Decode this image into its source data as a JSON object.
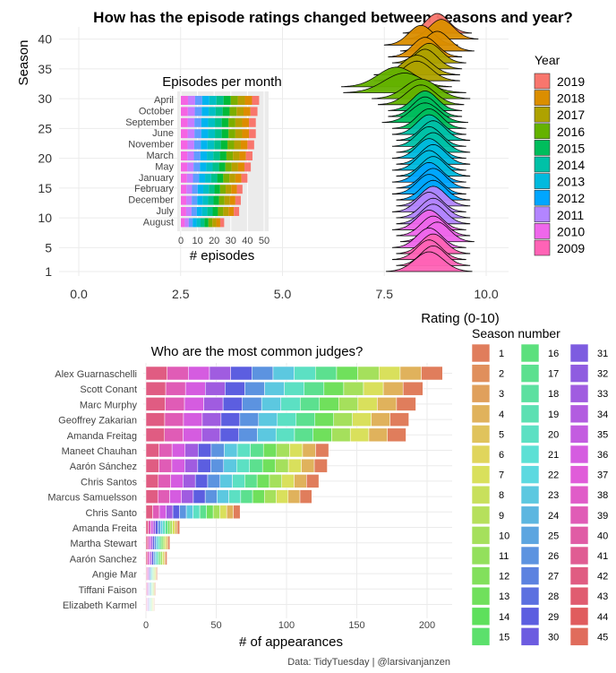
{
  "chart_data": [
    {
      "type": "ridgeline",
      "title": "How has the episode ratings changed between seasons and year?",
      "xlabel": "Rating (0-10)",
      "ylabel": "Season",
      "xlim": [
        0,
        10
      ],
      "xticks": [
        "0.0",
        "2.5",
        "5.0",
        "7.5",
        "10.0"
      ],
      "ytick_labels": [
        "1",
        "5",
        "10",
        "15",
        "20",
        "25",
        "30",
        "35",
        "40"
      ],
      "ytick_values": [
        1,
        5,
        10,
        15,
        20,
        25,
        30,
        35,
        40
      ],
      "legend_title": "Year",
      "legend_position": "right",
      "legend": [
        "2019",
        "2018",
        "2017",
        "2016",
        "2015",
        "2014",
        "2013",
        "2012",
        "2011",
        "2010",
        "2009"
      ],
      "seasons": [
        {
          "season": 1,
          "mean": 8.6,
          "sd": 0.35
        },
        {
          "season": 2,
          "mean": 8.7,
          "sd": 0.3
        },
        {
          "season": 3,
          "mean": 8.6,
          "sd": 0.3
        },
        {
          "season": 4,
          "mean": 8.7,
          "sd": 0.3
        },
        {
          "season": 5,
          "mean": 8.6,
          "sd": 0.3
        },
        {
          "season": 6,
          "mean": 8.8,
          "sd": 0.3
        },
        {
          "season": 7,
          "mean": 8.7,
          "sd": 0.3
        },
        {
          "season": 8,
          "mean": 8.6,
          "sd": 0.3
        },
        {
          "season": 9,
          "mean": 8.7,
          "sd": 0.3
        },
        {
          "season": 10,
          "mean": 8.7,
          "sd": 0.3
        },
        {
          "season": 11,
          "mean": 8.6,
          "sd": 0.3
        },
        {
          "season": 12,
          "mean": 8.7,
          "sd": 0.3
        },
        {
          "season": 13,
          "mean": 8.7,
          "sd": 0.3
        },
        {
          "season": 14,
          "mean": 8.6,
          "sd": 0.3
        },
        {
          "season": 15,
          "mean": 8.7,
          "sd": 0.3
        },
        {
          "season": 16,
          "mean": 8.6,
          "sd": 0.3
        },
        {
          "season": 17,
          "mean": 8.7,
          "sd": 0.3
        },
        {
          "season": 18,
          "mean": 8.6,
          "sd": 0.3
        },
        {
          "season": 19,
          "mean": 8.7,
          "sd": 0.3
        },
        {
          "season": 20,
          "mean": 8.6,
          "sd": 0.3
        },
        {
          "season": 21,
          "mean": 8.7,
          "sd": 0.3
        },
        {
          "season": 22,
          "mean": 8.6,
          "sd": 0.3
        },
        {
          "season": 23,
          "mean": 8.7,
          "sd": 0.3
        },
        {
          "season": 24,
          "mean": 8.6,
          "sd": 0.3
        },
        {
          "season": 25,
          "mean": 8.6,
          "sd": 0.3
        },
        {
          "season": 26,
          "mean": 8.5,
          "sd": 0.35
        },
        {
          "season": 27,
          "mean": 8.5,
          "sd": 0.3
        },
        {
          "season": 28,
          "mean": 8.5,
          "sd": 0.3
        },
        {
          "season": 29,
          "mean": 8.4,
          "sd": 0.35
        },
        {
          "season": 30,
          "mean": 8.4,
          "sd": 0.4
        },
        {
          "season": 31,
          "mean": 8.0,
          "sd": 0.5
        },
        {
          "season": 32,
          "mean": 7.8,
          "sd": 0.45
        },
        {
          "season": 33,
          "mean": 8.3,
          "sd": 0.35
        },
        {
          "season": 34,
          "mean": 8.3,
          "sd": 0.35
        },
        {
          "season": 35,
          "mean": 8.5,
          "sd": 0.3
        },
        {
          "season": 36,
          "mean": 8.6,
          "sd": 0.3
        },
        {
          "season": 37,
          "mean": 8.5,
          "sd": 0.3
        },
        {
          "season": 38,
          "mean": 8.8,
          "sd": 0.3
        },
        {
          "season": 39,
          "mean": 8.4,
          "sd": 0.3
        },
        {
          "season": 40,
          "mean": 8.9,
          "sd": 0.3
        },
        {
          "season": 41,
          "mean": 8.8,
          "sd": 0.28
        }
      ]
    },
    {
      "type": "bar",
      "orientation": "horizontal",
      "stacked": true,
      "title": "Episodes per month",
      "xlabel": "# episodes",
      "xlim": [
        0,
        50
      ],
      "xticks": [
        "0",
        "10",
        "20",
        "30",
        "40",
        "50"
      ],
      "categories": [
        "April",
        "October",
        "September",
        "June",
        "November",
        "March",
        "May",
        "January",
        "February",
        "December",
        "July",
        "August"
      ],
      "values": [
        47,
        46,
        45,
        45,
        44,
        43,
        42,
        40,
        37,
        36,
        35,
        26
      ]
    },
    {
      "type": "bar",
      "orientation": "horizontal",
      "stacked": true,
      "title": "Who are the most common judges?",
      "xlabel": "# of appearances",
      "xlim": [
        0,
        210
      ],
      "xticks": [
        "0",
        "50",
        "100",
        "150",
        "200"
      ],
      "categories": [
        "Alex Guarnaschelli",
        "Scott Conant",
        "Marc Murphy",
        "Geoffrey Zakarian",
        "Amanda Freitag",
        "Maneet Chauhan",
        "Aarón Sánchez",
        "Chris Santos",
        "Marcus Samuelsson",
        "Chris Santo",
        "Amanda Freita",
        "Martha Stewart",
        "Aarón Sanchez",
        "Angie Mar",
        "Tiffani Faison",
        "Elizabeth Karmel"
      ],
      "values": [
        211,
        197,
        192,
        187,
        185,
        130,
        129,
        123,
        118,
        67,
        24,
        17,
        15,
        8,
        7,
        6
      ],
      "legend_title": "Season number",
      "legend_position": "right",
      "legend": [
        "1",
        "2",
        "3",
        "4",
        "5",
        "6",
        "7",
        "8",
        "9",
        "10",
        "11",
        "12",
        "13",
        "14",
        "15",
        "16",
        "17",
        "18",
        "19",
        "20",
        "21",
        "22",
        "23",
        "24",
        "25",
        "26",
        "27",
        "28",
        "29",
        "30",
        "31",
        "32",
        "33",
        "34",
        "35",
        "36",
        "37",
        "38",
        "39",
        "40",
        "41",
        "42",
        "43",
        "44",
        "45"
      ]
    }
  ],
  "caption": "Data: TidyTuesday | @larsivanjanzen"
}
